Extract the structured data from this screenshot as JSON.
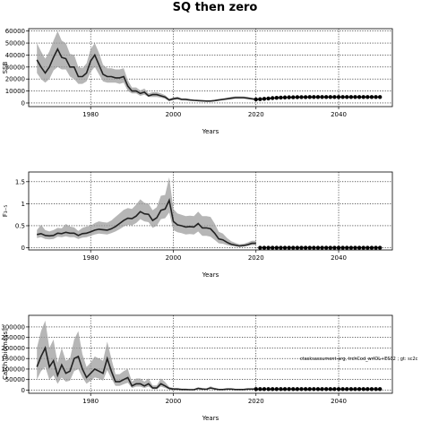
{
  "title": "SQ then zero",
  "panels": [
    {
      "id": "ssb",
      "ylabel": "SSB",
      "xlabel": "Years",
      "ylim": [
        -3000,
        62000
      ],
      "yticks": [
        0,
        10000,
        20000,
        30000,
        40000,
        50000,
        60000
      ],
      "xticks": [
        1980,
        2000,
        2020,
        2040
      ],
      "xlim": [
        1965,
        2053
      ]
    },
    {
      "id": "f",
      "ylabel": "F₃₋₅",
      "xlabel": "Years",
      "ylim": [
        -0.05,
        1.72
      ],
      "yticks": [
        0.0,
        0.5,
        1.0,
        1.5
      ],
      "xticks": [
        1980,
        2000,
        2020,
        2040
      ],
      "xlim": [
        1965,
        2053
      ]
    },
    {
      "id": "catch",
      "ylabel": "Catch (biomass)",
      "xlabel": "Years",
      "ylim": [
        -15000,
        355000
      ],
      "yticks": [
        0,
        50000,
        100000,
        150000,
        200000,
        250000,
        300000
      ],
      "xticks": [
        1980,
        2000,
        2020,
        2040
      ],
      "xlim": [
        1965,
        2053
      ],
      "annotation": "ctasksassument-arg, trchCod_wrIOL+ES32 ; gt: sc2c"
    }
  ],
  "chart_data": [
    {
      "type": "line",
      "title": "SQ then zero",
      "xlabel": "Years",
      "ylabel": "SSB",
      "series": [
        {
          "years": [
            1967,
            1968,
            1969,
            1970,
            1971,
            1972,
            1973,
            1974,
            1975,
            1976,
            1977,
            1978,
            1979,
            1980,
            1981,
            1982,
            1983,
            1984,
            1985,
            1986,
            1987,
            1988,
            1989,
            1990,
            1991,
            1992,
            1993,
            1994,
            1995,
            1996,
            1997,
            1998,
            1999,
            2000,
            2001,
            2002,
            2003,
            2004,
            2005,
            2006,
            2007,
            2008,
            2009,
            2010,
            2011,
            2012,
            2013,
            2014,
            2015,
            2016,
            2017,
            2018,
            2019,
            2020
          ],
          "values": [
            36000,
            30000,
            25000,
            30000,
            38000,
            45000,
            38000,
            37000,
            30000,
            30000,
            22000,
            22000,
            25000,
            35000,
            40000,
            32000,
            24000,
            22000,
            22000,
            21000,
            21000,
            22000,
            14000,
            10000,
            10000,
            8000,
            9000,
            6000,
            7000,
            7000,
            6000,
            5000,
            2500,
            3500,
            4000,
            3000,
            3000,
            2500,
            2200,
            2000,
            1800,
            1600,
            1600,
            2000,
            2500,
            3000,
            3500,
            4000,
            4500,
            4500,
            4500,
            4000,
            3500,
            3000
          ],
          "lower": [
            25000,
            20000,
            17000,
            20000,
            27000,
            30000,
            28000,
            28000,
            22000,
            20000,
            16000,
            16000,
            18000,
            26000,
            30000,
            24000,
            18000,
            17000,
            17000,
            17000,
            16000,
            17000,
            10000,
            8000,
            8000,
            6000,
            7000,
            5000,
            5000,
            5000,
            4500,
            3500,
            1500,
            2500,
            3000,
            2200,
            2000,
            1800,
            1600,
            1400,
            1200,
            1000,
            1000,
            1400,
            1800,
            2200,
            2700,
            3000,
            3500,
            3600,
            3600,
            3200,
            2800,
            2300
          ],
          "upper": [
            50000,
            43000,
            37000,
            43000,
            52000,
            60000,
            52000,
            50000,
            41000,
            40000,
            30000,
            29000,
            33000,
            45000,
            50000,
            42000,
            32000,
            29000,
            29000,
            28000,
            28000,
            29000,
            19000,
            13000,
            13000,
            10500,
            12000,
            8000,
            9000,
            9000,
            8000,
            6500,
            3500,
            4700,
            5200,
            4000,
            4000,
            3300,
            2900,
            2700,
            2400,
            2200,
            2300,
            2700,
            3300,
            3900,
            4400,
            5000,
            5600,
            5600,
            5500,
            5000,
            4400,
            3800
          ]
        }
      ],
      "projection": {
        "years": [
          2020,
          2021,
          2022,
          2023,
          2024,
          2025,
          2026,
          2027,
          2028,
          2029,
          2030,
          2031,
          2032,
          2033,
          2034,
          2035,
          2036,
          2037,
          2038,
          2039,
          2040,
          2041,
          2042,
          2043,
          2044,
          2045,
          2046,
          2047,
          2048,
          2049,
          2050
        ],
        "values": [
          3000,
          3200,
          3500,
          3800,
          4100,
          4300,
          4500,
          4650,
          4750,
          4800,
          4850,
          4900,
          4900,
          4950,
          4950,
          5000,
          5000,
          5000,
          5000,
          5000,
          5000,
          5000,
          5000,
          5000,
          5000,
          5000,
          5000,
          5000,
          5000,
          5000,
          5000
        ]
      },
      "xlim": [
        1965,
        2053
      ],
      "ylim": [
        -3000,
        62000
      ],
      "grid": true
    },
    {
      "type": "line",
      "xlabel": "Years",
      "ylabel": "F₃₋₅",
      "series": [
        {
          "years": [
            1967,
            1968,
            1969,
            1970,
            1971,
            1972,
            1973,
            1974,
            1975,
            1976,
            1977,
            1978,
            1979,
            1980,
            1981,
            1982,
            1983,
            1984,
            1985,
            1986,
            1987,
            1988,
            1989,
            1990,
            1991,
            1992,
            1993,
            1994,
            1995,
            1996,
            1997,
            1998,
            1999,
            2000,
            2001,
            2002,
            2003,
            2004,
            2005,
            2006,
            2007,
            2008,
            2009,
            2010,
            2011,
            2012,
            2013,
            2014,
            2015,
            2016,
            2017,
            2018,
            2019,
            2020
          ],
          "values": [
            0.3,
            0.32,
            0.28,
            0.27,
            0.28,
            0.33,
            0.32,
            0.35,
            0.33,
            0.33,
            0.28,
            0.32,
            0.33,
            0.36,
            0.4,
            0.42,
            0.41,
            0.4,
            0.43,
            0.48,
            0.55,
            0.62,
            0.67,
            0.66,
            0.72,
            0.82,
            0.77,
            0.76,
            0.62,
            0.68,
            0.85,
            0.88,
            1.08,
            0.6,
            0.52,
            0.5,
            0.47,
            0.48,
            0.47,
            0.55,
            0.45,
            0.45,
            0.43,
            0.33,
            0.2,
            0.18,
            0.12,
            0.08,
            0.06,
            0.04,
            0.05,
            0.07,
            0.1,
            0.1
          ],
          "lower": [
            0.22,
            0.24,
            0.2,
            0.19,
            0.2,
            0.25,
            0.24,
            0.26,
            0.24,
            0.24,
            0.2,
            0.23,
            0.24,
            0.27,
            0.3,
            0.32,
            0.31,
            0.3,
            0.33,
            0.37,
            0.42,
            0.48,
            0.52,
            0.51,
            0.56,
            0.65,
            0.6,
            0.58,
            0.45,
            0.5,
            0.65,
            0.67,
            0.8,
            0.4,
            0.35,
            0.33,
            0.3,
            0.31,
            0.3,
            0.37,
            0.27,
            0.27,
            0.25,
            0.18,
            0.1,
            0.09,
            0.06,
            0.04,
            0.03,
            0.02,
            0.025,
            0.04,
            0.06,
            0.06
          ],
          "upper": [
            0.4,
            0.52,
            0.4,
            0.37,
            0.4,
            0.45,
            0.44,
            0.54,
            0.48,
            0.46,
            0.38,
            0.45,
            0.48,
            0.5,
            0.56,
            0.6,
            0.58,
            0.57,
            0.62,
            0.7,
            0.78,
            0.86,
            0.9,
            0.88,
            0.98,
            1.1,
            1.02,
            1.0,
            0.85,
            0.92,
            1.18,
            1.2,
            1.6,
            0.88,
            0.78,
            0.75,
            0.72,
            0.73,
            0.72,
            0.82,
            0.72,
            0.72,
            0.7,
            0.55,
            0.36,
            0.32,
            0.22,
            0.15,
            0.11,
            0.08,
            0.09,
            0.12,
            0.16,
            0.16
          ]
        }
      ],
      "projection": {
        "years": [
          2021,
          2022,
          2023,
          2024,
          2025,
          2026,
          2027,
          2028,
          2029,
          2030,
          2031,
          2032,
          2033,
          2034,
          2035,
          2036,
          2037,
          2038,
          2039,
          2040,
          2041,
          2042,
          2043,
          2044,
          2045,
          2046,
          2047,
          2048,
          2049,
          2050
        ],
        "values": [
          0,
          0,
          0,
          0,
          0,
          0,
          0,
          0,
          0,
          0,
          0,
          0,
          0,
          0,
          0,
          0,
          0,
          0,
          0,
          0,
          0,
          0,
          0,
          0,
          0,
          0,
          0,
          0,
          0,
          0
        ]
      },
      "xlim": [
        1965,
        2053
      ],
      "ylim": [
        -0.05,
        1.72
      ],
      "grid": true
    },
    {
      "type": "line",
      "xlabel": "Years",
      "ylabel": "Catch (biomass)",
      "series": [
        {
          "years": [
            1967,
            1968,
            1969,
            1970,
            1971,
            1972,
            1973,
            1974,
            1975,
            1976,
            1977,
            1978,
            1979,
            1980,
            1981,
            1982,
            1983,
            1984,
            1985,
            1986,
            1987,
            1988,
            1989,
            1990,
            1991,
            1992,
            1993,
            1994,
            1995,
            1996,
            1997,
            1998,
            1999,
            2000,
            2001,
            2002,
            2003,
            2004,
            2005,
            2006,
            2007,
            2008,
            2009,
            2010,
            2011,
            2012,
            2013,
            2014,
            2015,
            2016,
            2017,
            2018,
            2019,
            2020
          ],
          "values": [
            110000,
            160000,
            200000,
            110000,
            140000,
            70000,
            120000,
            80000,
            90000,
            150000,
            160000,
            100000,
            60000,
            80000,
            100000,
            90000,
            80000,
            150000,
            90000,
            40000,
            40000,
            50000,
            60000,
            20000,
            30000,
            30000,
            20000,
            30000,
            10000,
            10000,
            30000,
            20000,
            8000,
            5000,
            5000,
            3000,
            3000,
            2000,
            2000,
            8000,
            5000,
            4000,
            10000,
            6000,
            3000,
            3000,
            5000,
            5000,
            3000,
            3000,
            3000,
            5000,
            5000,
            5000
          ],
          "lower": [
            50000,
            90000,
            110000,
            50000,
            70000,
            30000,
            60000,
            40000,
            45000,
            90000,
            100000,
            60000,
            30000,
            45000,
            60000,
            55000,
            45000,
            95000,
            55000,
            20000,
            20000,
            28000,
            35000,
            10000,
            17000,
            17000,
            10000,
            17000,
            4000,
            4000,
            17000,
            10000,
            3000,
            2000,
            2000,
            1000,
            1000,
            500,
            500,
            4000,
            2000,
            1500,
            5000,
            3000,
            1000,
            1000,
            2000,
            2000,
            1000,
            1000,
            1000,
            2000,
            2000,
            2000
          ],
          "upper": [
            200000,
            280000,
            330000,
            200000,
            240000,
            130000,
            200000,
            140000,
            150000,
            240000,
            280000,
            170000,
            110000,
            130000,
            160000,
            150000,
            140000,
            230000,
            150000,
            75000,
            75000,
            90000,
            100000,
            40000,
            55000,
            55000,
            40000,
            55000,
            22000,
            22000,
            55000,
            38000,
            15000,
            10000,
            10000,
            7000,
            7000,
            5000,
            5000,
            14000,
            10000,
            8000,
            18000,
            11000,
            6000,
            6000,
            9000,
            9000,
            6000,
            6000,
            6000,
            9000,
            9000,
            9000
          ]
        }
      ],
      "projection": {
        "years": [
          2020,
          2021,
          2022,
          2023,
          2024,
          2025,
          2026,
          2027,
          2028,
          2029,
          2030,
          2031,
          2032,
          2033,
          2034,
          2035,
          2036,
          2037,
          2038,
          2039,
          2040,
          2041,
          2042,
          2043,
          2044,
          2045,
          2046,
          2047,
          2048,
          2049,
          2050
        ],
        "values": [
          5000,
          5000,
          5000,
          5000,
          5000,
          5000,
          5000,
          5000,
          5000,
          5000,
          5000,
          5000,
          5000,
          5000,
          5000,
          5000,
          5000,
          5000,
          5000,
          5000,
          5000,
          5000,
          5000,
          5000,
          5000,
          5000,
          5000,
          5000,
          5000,
          5000,
          5000
        ]
      },
      "xlim": [
        1965,
        2053
      ],
      "ylim": [
        -15000,
        355000
      ],
      "grid": true
    }
  ]
}
